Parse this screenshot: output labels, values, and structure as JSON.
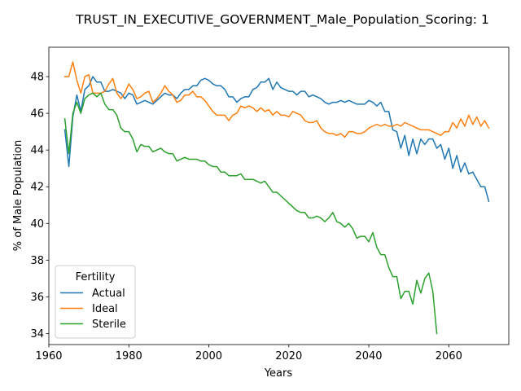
{
  "chart_data": {
    "type": "line",
    "title": "TRUST_IN_EXECUTIVE_GOVERNMENT_Male_Population_Scoring: 1",
    "xlabel": "Years",
    "ylabel": "% of Male Population",
    "xlim": [
      1960,
      2075
    ],
    "ylim": [
      33.4,
      49.6
    ],
    "xticks": [
      1960,
      1980,
      2000,
      2020,
      2040,
      2060
    ],
    "yticks": [
      34,
      36,
      38,
      40,
      42,
      44,
      46,
      48
    ],
    "grid": false,
    "legend": {
      "title": "Fertility",
      "placement": "lower-left"
    },
    "series": [
      {
        "name": "Actual",
        "color": "#1f77b4",
        "x": [
          1964,
          1965,
          1966,
          1967,
          1968,
          1969,
          1970,
          1971,
          1972,
          1973,
          1974,
          1975,
          1976,
          1977,
          1978,
          1979,
          1980,
          1981,
          1982,
          1983,
          1984,
          1985,
          1986,
          1987,
          1988,
          1989,
          1990,
          1991,
          1992,
          1993,
          1994,
          1995,
          1996,
          1997,
          1998,
          1999,
          2000,
          2001,
          2002,
          2003,
          2004,
          2005,
          2006,
          2007,
          2008,
          2009,
          2010,
          2011,
          2012,
          2013,
          2014,
          2015,
          2016,
          2017,
          2018,
          2019,
          2020,
          2021,
          2022,
          2023,
          2024,
          2025,
          2026,
          2027,
          2028,
          2029,
          2030,
          2031,
          2032,
          2033,
          2034,
          2035,
          2036,
          2037,
          2038,
          2039,
          2040,
          2041,
          2042,
          2043,
          2044,
          2045,
          2046,
          2047,
          2048,
          2049,
          2050,
          2051,
          2052,
          2053,
          2054,
          2055,
          2056,
          2057,
          2058,
          2059,
          2060,
          2061,
          2062,
          2063,
          2064,
          2065,
          2066,
          2067,
          2068,
          2069,
          2070
        ],
        "y": [
          45.1,
          43.1,
          45.8,
          47.0,
          46.1,
          47.3,
          47.5,
          48.0,
          47.7,
          47.7,
          47.2,
          47.2,
          47.3,
          47.2,
          47.1,
          46.8,
          47.1,
          47.0,
          46.5,
          46.6,
          46.7,
          46.6,
          46.5,
          46.7,
          46.9,
          47.1,
          47.0,
          47.0,
          46.8,
          47.1,
          47.3,
          47.3,
          47.5,
          47.5,
          47.8,
          47.9,
          47.8,
          47.6,
          47.5,
          47.5,
          47.3,
          46.9,
          46.9,
          46.6,
          46.8,
          46.9,
          46.9,
          47.3,
          47.4,
          47.7,
          47.7,
          47.9,
          47.3,
          47.7,
          47.4,
          47.3,
          47.2,
          47.2,
          47.0,
          47.2,
          47.2,
          46.9,
          47.0,
          46.9,
          46.8,
          46.6,
          46.5,
          46.6,
          46.6,
          46.7,
          46.6,
          46.7,
          46.6,
          46.5,
          46.5,
          46.5,
          46.7,
          46.6,
          46.4,
          46.6,
          46.1,
          46.1,
          45.1,
          45.0,
          44.1,
          44.8,
          43.7,
          44.6,
          43.8,
          44.6,
          44.3,
          44.6,
          44.6,
          44.1,
          44.3,
          43.5,
          44.1,
          43.0,
          43.7,
          42.8,
          43.3,
          42.7,
          42.8,
          42.4,
          42.0,
          42.0,
          41.2
        ]
      },
      {
        "name": "Ideal",
        "color": "#ff7f0e",
        "x": [
          1964,
          1965,
          1966,
          1967,
          1968,
          1969,
          1970,
          1971,
          1972,
          1973,
          1974,
          1975,
          1976,
          1977,
          1978,
          1979,
          1980,
          1981,
          1982,
          1983,
          1984,
          1985,
          1986,
          1987,
          1988,
          1989,
          1990,
          1991,
          1992,
          1993,
          1994,
          1995,
          1996,
          1997,
          1998,
          1999,
          2000,
          2001,
          2002,
          2003,
          2004,
          2005,
          2006,
          2007,
          2008,
          2009,
          2010,
          2011,
          2012,
          2013,
          2014,
          2015,
          2016,
          2017,
          2018,
          2019,
          2020,
          2021,
          2022,
          2023,
          2024,
          2025,
          2026,
          2027,
          2028,
          2029,
          2030,
          2031,
          2032,
          2033,
          2034,
          2035,
          2036,
          2037,
          2038,
          2039,
          2040,
          2041,
          2042,
          2043,
          2044,
          2045,
          2046,
          2047,
          2048,
          2049,
          2050,
          2051,
          2052,
          2053,
          2054,
          2055,
          2056,
          2057,
          2058,
          2059,
          2060,
          2061,
          2062,
          2063,
          2064,
          2065,
          2066,
          2067,
          2068,
          2069,
          2070
        ],
        "y": [
          48.0,
          48.0,
          48.8,
          47.8,
          47.1,
          48.0,
          48.1,
          47.1,
          47.1,
          47.1,
          47.2,
          47.6,
          47.9,
          47.1,
          46.8,
          47.1,
          47.6,
          47.3,
          46.8,
          46.9,
          47.1,
          47.2,
          46.6,
          46.8,
          47.1,
          47.5,
          47.2,
          47.0,
          46.6,
          46.7,
          47.0,
          47.0,
          47.2,
          46.9,
          46.9,
          46.7,
          46.4,
          46.1,
          45.9,
          45.9,
          45.9,
          45.6,
          45.9,
          46.0,
          46.4,
          46.3,
          46.4,
          46.3,
          46.1,
          46.3,
          46.1,
          46.2,
          45.9,
          46.1,
          45.9,
          45.9,
          45.8,
          46.1,
          46.0,
          45.9,
          45.6,
          45.5,
          45.5,
          45.6,
          45.2,
          45.0,
          44.9,
          44.9,
          44.8,
          44.9,
          44.7,
          45.0,
          45.0,
          44.9,
          44.9,
          45.0,
          45.2,
          45.3,
          45.4,
          45.3,
          45.4,
          45.3,
          45.3,
          45.4,
          45.3,
          45.5,
          45.4,
          45.3,
          45.2,
          45.1,
          45.1,
          45.1,
          45.0,
          44.9,
          44.8,
          45.0,
          45.0,
          45.5,
          45.2,
          45.7,
          45.3,
          45.9,
          45.4,
          45.8,
          45.3,
          45.6,
          45.2
        ]
      },
      {
        "name": "Sterile",
        "color": "#2ca02c",
        "x": [
          1964,
          1965,
          1966,
          1967,
          1968,
          1969,
          1970,
          1971,
          1972,
          1973,
          1974,
          1975,
          1976,
          1977,
          1978,
          1979,
          1980,
          1981,
          1982,
          1983,
          1984,
          1985,
          1986,
          1987,
          1988,
          1989,
          1990,
          1991,
          1992,
          1993,
          1994,
          1995,
          1996,
          1997,
          1998,
          1999,
          2000,
          2001,
          2002,
          2003,
          2004,
          2005,
          2006,
          2007,
          2008,
          2009,
          2010,
          2011,
          2012,
          2013,
          2014,
          2015,
          2016,
          2017,
          2018,
          2019,
          2020,
          2021,
          2022,
          2023,
          2024,
          2025,
          2026,
          2027,
          2028,
          2029,
          2030,
          2031,
          2032,
          2033,
          2034,
          2035,
          2036,
          2037,
          2038,
          2039,
          2040,
          2041,
          2042,
          2043,
          2044,
          2045,
          2046,
          2047,
          2048,
          2049,
          2050,
          2051,
          2052,
          2053,
          2054,
          2055,
          2056,
          2057
        ],
        "y": [
          45.7,
          43.8,
          46.0,
          46.6,
          46.0,
          46.8,
          47.0,
          47.1,
          46.9,
          47.1,
          46.5,
          46.2,
          46.2,
          45.9,
          45.2,
          45.0,
          45.0,
          44.6,
          43.9,
          44.3,
          44.2,
          44.2,
          43.9,
          44.0,
          44.1,
          43.9,
          43.8,
          43.8,
          43.4,
          43.5,
          43.6,
          43.5,
          43.5,
          43.5,
          43.4,
          43.4,
          43.2,
          43.1,
          43.1,
          42.8,
          42.8,
          42.6,
          42.6,
          42.6,
          42.7,
          42.4,
          42.4,
          42.4,
          42.3,
          42.2,
          42.3,
          42.0,
          41.7,
          41.7,
          41.5,
          41.3,
          41.1,
          40.9,
          40.7,
          40.6,
          40.6,
          40.3,
          40.3,
          40.4,
          40.3,
          40.1,
          40.3,
          40.6,
          40.1,
          40.0,
          39.8,
          40.0,
          39.7,
          39.2,
          39.3,
          39.3,
          39.0,
          39.5,
          38.7,
          38.3,
          38.3,
          37.6,
          37.1,
          37.1,
          35.9,
          36.3,
          36.3,
          35.6,
          36.9,
          36.2,
          37.0,
          37.3,
          36.3,
          34.0
        ]
      }
    ]
  }
}
